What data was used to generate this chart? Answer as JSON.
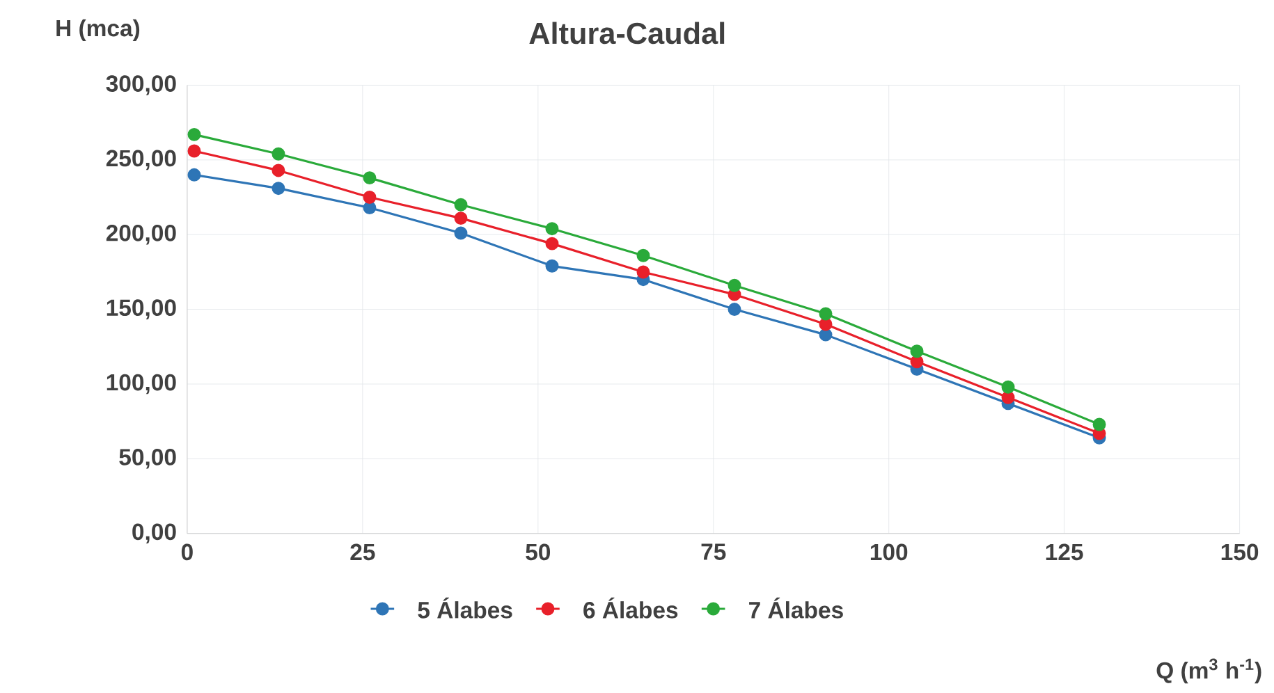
{
  "chart_data": {
    "type": "line",
    "title": "Altura-Caudal",
    "ylabel": "H (mca)",
    "xlabel": "Q (m$^{3}$ h$^{-1}$)",
    "x": [
      1,
      13,
      26,
      39,
      52,
      65,
      78,
      91,
      104,
      117,
      130
    ],
    "series": [
      {
        "name": "5 Álabes",
        "color": "#2e75b6",
        "values": [
          240,
          231,
          218,
          201,
          179,
          170,
          150,
          133,
          110,
          87,
          64
        ]
      },
      {
        "name": "6 Álabes",
        "color": "#e8202a",
        "values": [
          256,
          243,
          225,
          211,
          194,
          175,
          160,
          140,
          115,
          91,
          67
        ]
      },
      {
        "name": "7 Álabes",
        "color": "#2aaa3a",
        "values": [
          267,
          254,
          238,
          220,
          204,
          186,
          166,
          147,
          122,
          98,
          73
        ]
      }
    ],
    "xlim": [
      0,
      150
    ],
    "xticks": [
      0,
      25,
      50,
      75,
      100,
      125,
      150
    ],
    "ylim": [
      0,
      300
    ],
    "yticks": [
      {
        "value": 0,
        "label": "0,00"
      },
      {
        "value": 50,
        "label": "50,00"
      },
      {
        "value": 100,
        "label": "100,00"
      },
      {
        "value": 150,
        "label": "150,00"
      },
      {
        "value": 200,
        "label": "200,00"
      },
      {
        "value": 250,
        "label": "250,00"
      },
      {
        "value": 300,
        "label": "300,00"
      }
    ],
    "grid": true,
    "legend": "bottom",
    "marker": "circle",
    "line_style": "solid"
  }
}
